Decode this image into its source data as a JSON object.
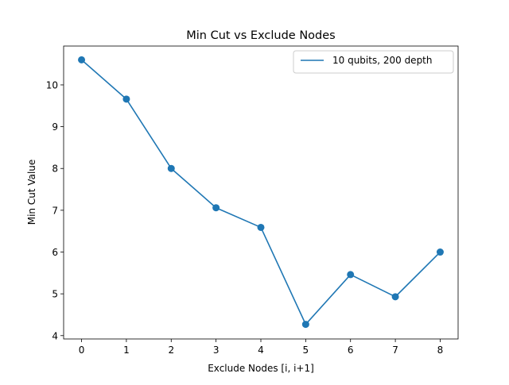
{
  "chart_data": {
    "type": "line",
    "title": "Min Cut vs Exclude Nodes",
    "xlabel": "Exclude Nodes [i, i+1]",
    "ylabel": "Min Cut Value",
    "x": [
      0,
      1,
      2,
      3,
      4,
      5,
      6,
      7,
      8
    ],
    "series": [
      {
        "name": "10 qubits, 200 depth",
        "values": [
          10.6,
          9.66,
          8.0,
          7.06,
          6.59,
          4.27,
          5.46,
          4.93,
          6.0
        ],
        "color": "#1f77b4",
        "marker": "circle"
      }
    ],
    "xticks": [
      "0",
      "1",
      "2",
      "3",
      "4",
      "5",
      "6",
      "7",
      "8"
    ],
    "yticks": [
      "4",
      "5",
      "6",
      "7",
      "8",
      "9",
      "10"
    ],
    "xlim": [
      -0.4,
      8.4
    ],
    "ylim": [
      3.92,
      10.93
    ],
    "grid": false,
    "legend_position": "top-right"
  }
}
